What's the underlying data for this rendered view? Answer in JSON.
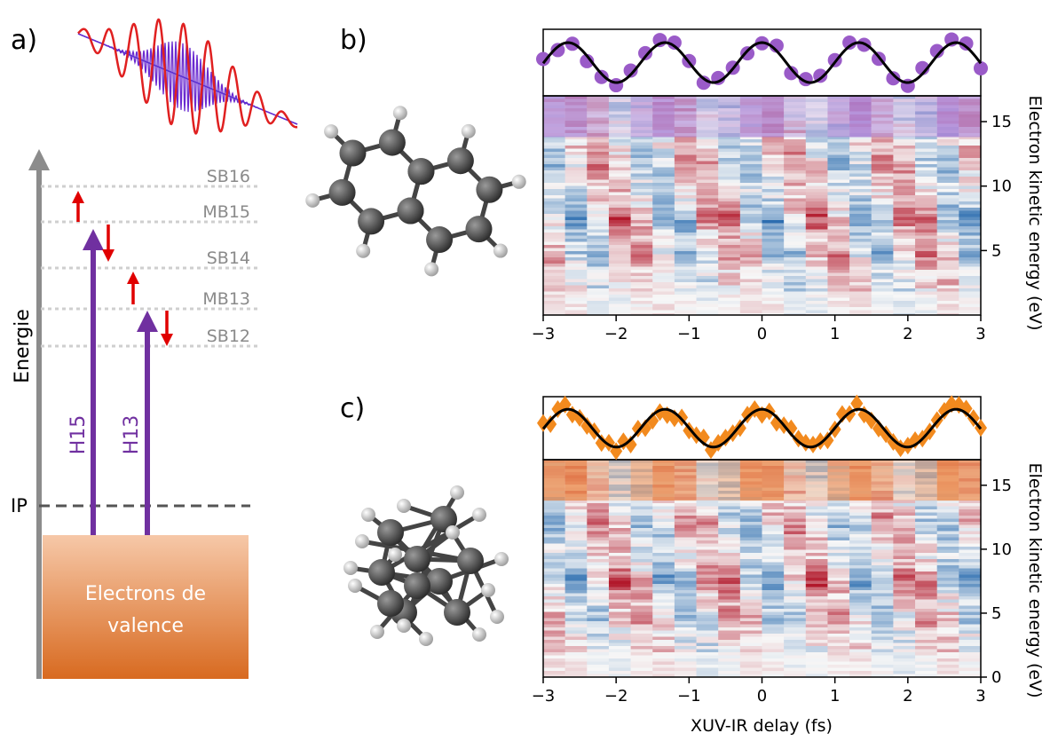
{
  "panel_a": {
    "label": "a)",
    "axis_label": "Energie",
    "levels": [
      "SB16",
      "MB15",
      "SB14",
      "MB13",
      "SB12"
    ],
    "ip": "IP",
    "harmonics": [
      "H15",
      "H13"
    ],
    "band": [
      "Electrons de",
      "valence"
    ]
  },
  "panel_b": {
    "label": "b)",
    "ylim": [
      0,
      17
    ],
    "yticks": [
      5,
      10,
      15
    ]
  },
  "panel_c": {
    "label": "c)",
    "ylim": [
      0,
      17
    ],
    "yticks": [
      0,
      5,
      10,
      15
    ]
  },
  "axes": {
    "xlim": [
      -3,
      3
    ],
    "xticks": [
      {
        "value": -3,
        "label": "−3"
      },
      {
        "value": -2,
        "label": "−2"
      },
      {
        "value": -1,
        "label": "−1"
      },
      0,
      1,
      2,
      3
    ],
    "xlabel": "XUV-IR delay (fs)",
    "ylabel": "Electron kinetic energy (eV)"
  }
}
